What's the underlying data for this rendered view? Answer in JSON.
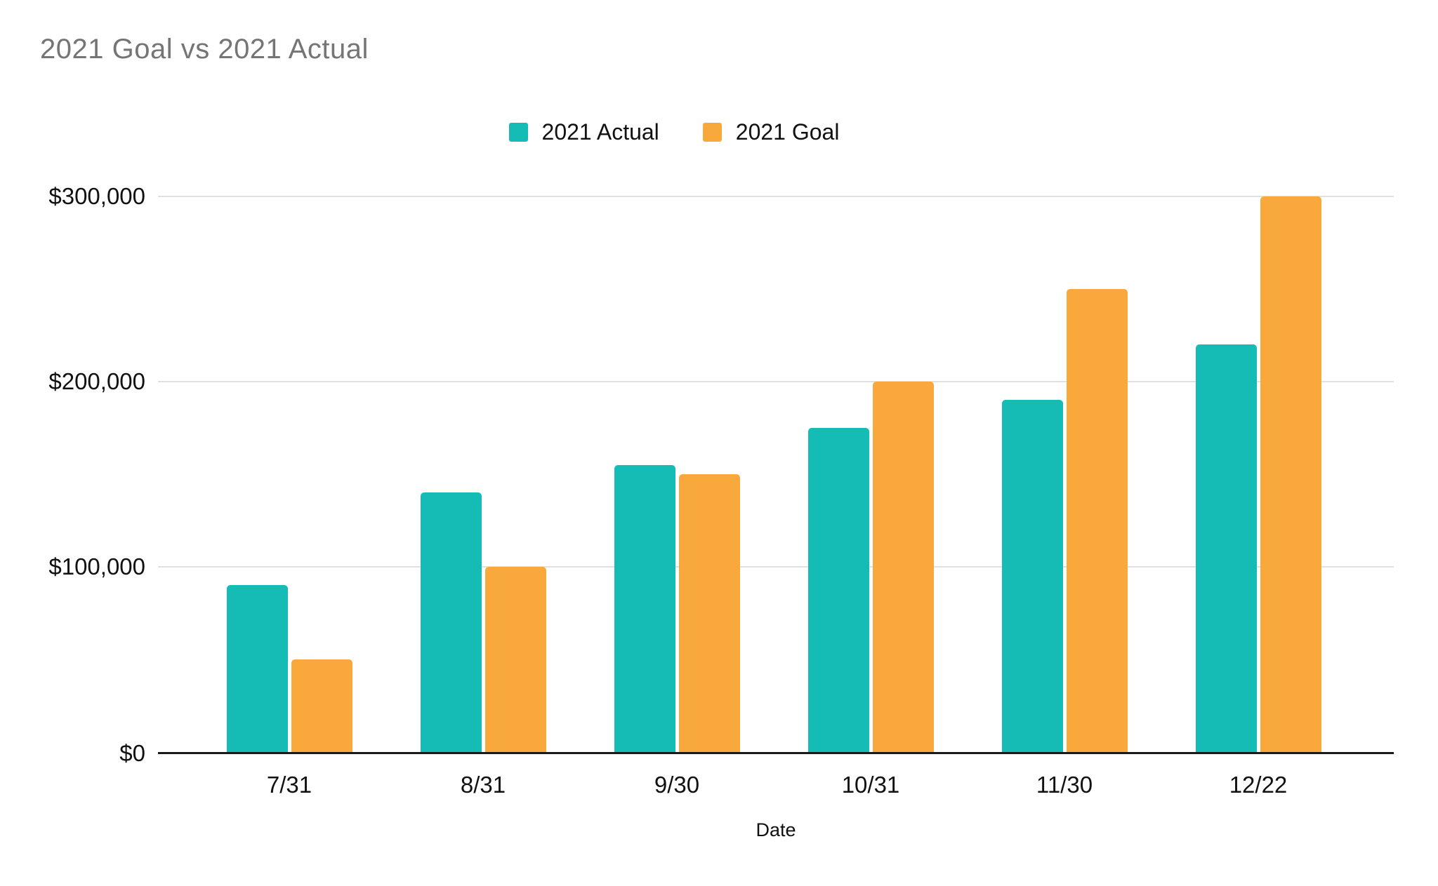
{
  "chart_data": {
    "type": "bar",
    "title": "2021 Goal vs 2021 Actual",
    "xlabel": "Date",
    "ylabel": "",
    "categories": [
      "7/31",
      "8/31",
      "9/30",
      "10/31",
      "11/30",
      "12/22"
    ],
    "series": [
      {
        "name": "2021 Actual",
        "color": "#15BCB6",
        "values": [
          90000,
          140000,
          155000,
          175000,
          190000,
          220000
        ]
      },
      {
        "name": "2021 Goal",
        "color": "#F9A93B",
        "values": [
          50000,
          100000,
          150000,
          200000,
          250000,
          300000
        ]
      }
    ],
    "ylim": [
      0,
      300000
    ],
    "yticks": [
      {
        "value": 0,
        "label": "$0"
      },
      {
        "value": 100000,
        "label": "$100,000"
      },
      {
        "value": 200000,
        "label": "$200,000"
      },
      {
        "value": 300000,
        "label": "$300,000"
      }
    ],
    "grid": true,
    "legend_position": "top-center",
    "colors": {
      "title_text": "#757575",
      "axis_text": "#111111",
      "gridline": "#e0e0e0",
      "baseline": "#1a1a1a",
      "background": "#ffffff"
    }
  }
}
